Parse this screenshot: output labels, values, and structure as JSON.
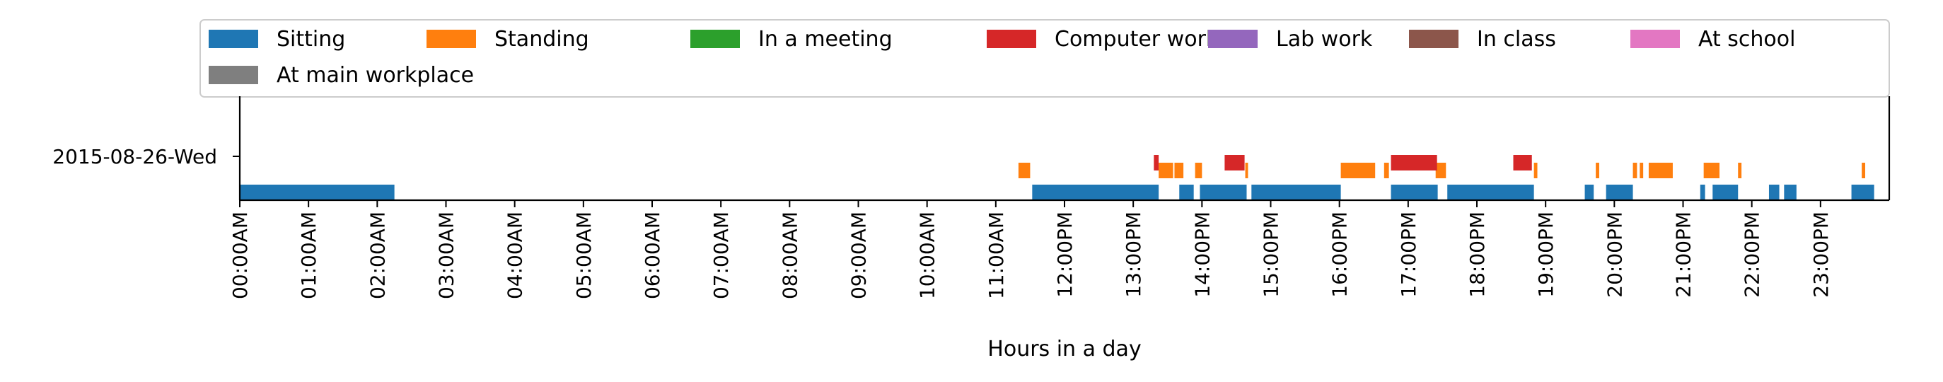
{
  "chart_data": {
    "type": "timeline",
    "xlabel": "Hours in a day",
    "xlim": [
      0,
      24
    ],
    "xticks": [
      "00:00AM",
      "01:00AM",
      "02:00AM",
      "03:00AM",
      "04:00AM",
      "05:00AM",
      "06:00AM",
      "07:00AM",
      "08:00AM",
      "09:00AM",
      "10:00AM",
      "11:00AM",
      "12:00PM",
      "13:00PM",
      "14:00PM",
      "15:00PM",
      "16:00PM",
      "17:00PM",
      "18:00PM",
      "19:00PM",
      "20:00PM",
      "21:00PM",
      "22:00PM",
      "23:00PM"
    ],
    "y_categories": [
      "2015-08-26-Wed"
    ],
    "legend": {
      "position": "top",
      "entries": [
        {
          "name": "Sitting",
          "color": "#1f77b4"
        },
        {
          "name": "Standing",
          "color": "#ff7f0e"
        },
        {
          "name": "In a meeting",
          "color": "#2ca02c"
        },
        {
          "name": "Computer work",
          "color": "#d62728"
        },
        {
          "name": "Lab work",
          "color": "#9467bd"
        },
        {
          "name": "In class",
          "color": "#8c564b"
        },
        {
          "name": "At school",
          "color": "#e377c2"
        },
        {
          "name": "At main workplace",
          "color": "#7f7f7f"
        }
      ]
    },
    "series": [
      {
        "name": "Sitting",
        "lane": 0,
        "color": "#1f77b4",
        "intervals": [
          [
            0.0,
            2.25
          ],
          [
            11.53,
            13.37
          ],
          [
            13.67,
            13.88
          ],
          [
            13.97,
            14.65
          ],
          [
            14.72,
            16.02
          ],
          [
            16.75,
            17.43
          ],
          [
            17.57,
            18.83
          ],
          [
            19.57,
            19.7
          ],
          [
            19.88,
            20.27
          ],
          [
            21.25,
            21.32
          ],
          [
            21.43,
            21.8
          ],
          [
            22.25,
            22.4
          ],
          [
            22.47,
            22.65
          ],
          [
            23.45,
            23.78
          ]
        ]
      },
      {
        "name": "Standing",
        "lane": 1,
        "color": "#ff7f0e",
        "intervals": [
          [
            11.33,
            11.5
          ],
          [
            13.37,
            13.58
          ],
          [
            13.6,
            13.73
          ],
          [
            13.9,
            14.0
          ],
          [
            14.63,
            14.67
          ],
          [
            16.02,
            16.52
          ],
          [
            16.65,
            16.72
          ],
          [
            17.4,
            17.55
          ],
          [
            18.83,
            18.88
          ],
          [
            19.73,
            19.78
          ],
          [
            20.27,
            20.33
          ],
          [
            20.37,
            20.42
          ],
          [
            20.5,
            20.85
          ],
          [
            21.3,
            21.53
          ],
          [
            21.8,
            21.85
          ],
          [
            23.6,
            23.65
          ]
        ]
      },
      {
        "name": "Computer work",
        "lane": 2,
        "color": "#d62728",
        "intervals": [
          [
            13.3,
            13.37
          ],
          [
            14.33,
            14.62
          ],
          [
            16.75,
            17.42
          ],
          [
            18.53,
            18.8
          ]
        ]
      }
    ]
  }
}
